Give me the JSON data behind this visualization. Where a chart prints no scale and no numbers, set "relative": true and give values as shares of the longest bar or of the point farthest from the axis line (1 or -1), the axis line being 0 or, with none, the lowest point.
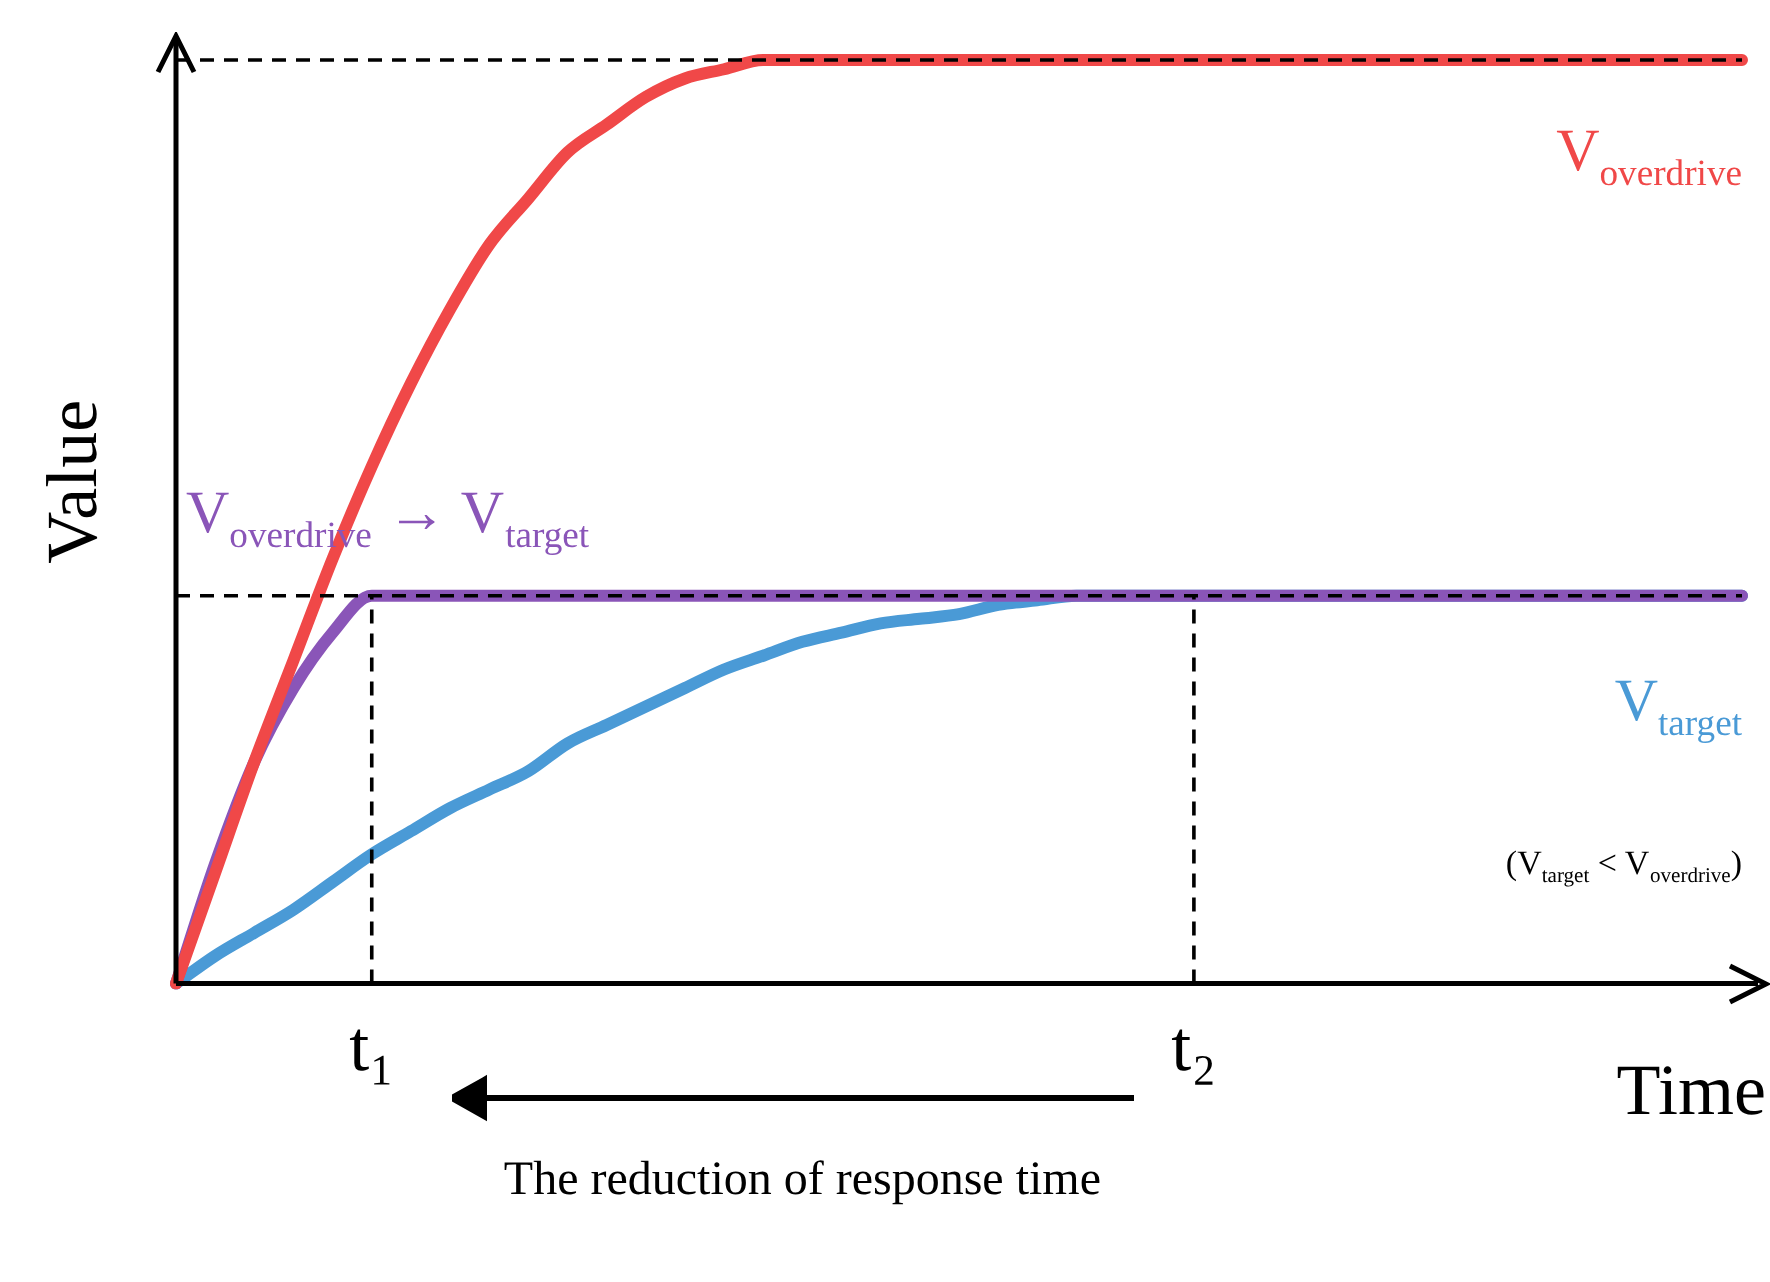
{
  "chart_data": {
    "type": "line",
    "relative": true,
    "xlabel": "Time",
    "ylabel": "Value",
    "categories": [
      null,
      null,
      null,
      null,
      null,
      "t₁",
      null,
      null,
      null,
      null,
      null,
      null,
      null,
      null,
      null,
      null,
      null,
      null,
      null,
      null,
      null,
      null,
      null,
      null,
      null,
      null,
      "t₂",
      null,
      null,
      null,
      null,
      null,
      null,
      null,
      null,
      null,
      null,
      null,
      null,
      null,
      null
    ],
    "grid": false,
    "legend": false,
    "marker": "none",
    "line_style": "solid",
    "series": [
      {
        "name": "V$_{overdrive}$",
        "color": "#f04848",
        "values": [
          0,
          0.12,
          0.24,
          0.35,
          0.46,
          0.56,
          0.65,
          0.73,
          0.8,
          0.85,
          0.9,
          0.93,
          0.96,
          0.98,
          0.99,
          1,
          1,
          1,
          1,
          1,
          1,
          1,
          1,
          1,
          1,
          1,
          1,
          1,
          1,
          1,
          1,
          1,
          1,
          1,
          1,
          1,
          1,
          1,
          1,
          1,
          1
        ]
      },
      {
        "name": "V$_{overdrive}$ → V$_{target}$",
        "color": "#8a55b8",
        "values": [
          0,
          0.13,
          0.24,
          0.32,
          0.38,
          0.42,
          0.42,
          0.42,
          0.42,
          0.42,
          0.42,
          0.42,
          0.42,
          0.42,
          0.42,
          0.42,
          0.42,
          0.42,
          0.42,
          0.42,
          0.42,
          0.42,
          0.42,
          0.42,
          0.42,
          0.42,
          0.42,
          0.42,
          0.42,
          0.42,
          0.42,
          0.42,
          0.42,
          0.42,
          0.42,
          0.42,
          0.42,
          0.42,
          0.42,
          0.42,
          0.42
        ]
      },
      {
        "name": "V$_{target}$",
        "color": "#4a9ad6",
        "values": [
          0,
          0.03,
          0.055,
          0.08,
          0.11,
          0.14,
          0.165,
          0.19,
          0.21,
          0.23,
          0.26,
          0.28,
          0.3,
          0.32,
          0.34,
          0.355,
          0.37,
          0.38,
          0.39,
          0.395,
          0.4,
          0.41,
          0.415,
          0.42,
          0.42,
          0.42,
          0.42,
          0.42,
          0.42,
          0.42,
          0.42,
          0.42,
          0.42,
          0.42,
          0.42,
          0.42,
          0.42,
          0.42,
          0.42,
          0.42,
          0.42
        ]
      }
    ],
    "ref_lines": [
      {
        "axis": "y",
        "value": 1,
        "color": "#000000",
        "line_style": "dashed"
      },
      {
        "axis": "y",
        "value": 0.42,
        "color": "#000000",
        "line_style": "dashed"
      },
      {
        "axis": "x",
        "value": "t₁",
        "color": "#000000",
        "line_style": "dashed"
      },
      {
        "axis": "x",
        "value": "t₂",
        "color": "#000000",
        "line_style": "dashed"
      }
    ],
    "annotations": [
      "(V$_{target}$ < V$_{overdrive}$)",
      "The reduction of response time"
    ]
  }
}
